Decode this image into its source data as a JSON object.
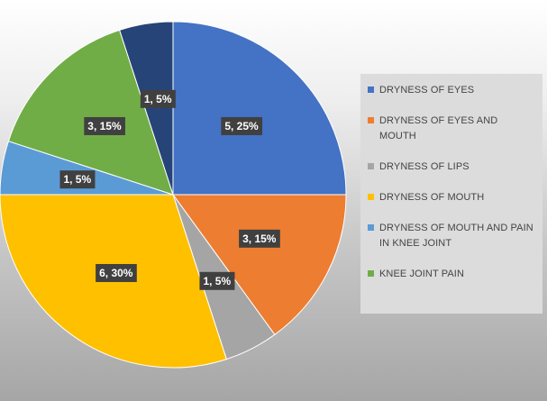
{
  "chart_data": {
    "type": "pie",
    "title": "",
    "series": [
      {
        "values": [
          5,
          3,
          1,
          6,
          1,
          3,
          1
        ],
        "percent_labels": [
          "25%",
          "15%",
          "5%",
          "30%",
          "5%",
          "15%",
          "5%"
        ],
        "data_labels": [
          "5, 25%",
          "3, 15%",
          "1, 5%",
          "6, 30%",
          "1, 5%",
          "3, 15%",
          "1, 5%"
        ]
      }
    ],
    "categories": [
      "DRYNESS OF EYES",
      "DRYNESS OF EYES AND MOUTH",
      "DRYNESS OF LIPS",
      "DRYNESS OF MOUTH",
      "DRYNESS OF MOUTH AND PAIN IN KNEE JOINT",
      "KNEE JOINT PAIN",
      ""
    ],
    "colors": [
      "#4472c4",
      "#ed7d31",
      "#a5a5a5",
      "#ffc000",
      "#5b9bd5",
      "#70ad47",
      "#264478"
    ],
    "legend_position": "right",
    "start": "12 o'clock, clockwise"
  },
  "legend": {
    "items": [
      {
        "label": "DRYNESS OF EYES",
        "color": "#4472c4"
      },
      {
        "label": "DRYNESS OF EYES AND MOUTH",
        "color": "#ed7d31"
      },
      {
        "label": "DRYNESS OF LIPS",
        "color": "#a5a5a5"
      },
      {
        "label": "DRYNESS OF MOUTH",
        "color": "#ffc000"
      },
      {
        "label": "DRYNESS OF MOUTH AND PAIN IN KNEE JOINT",
        "color": "#5b9bd5"
      },
      {
        "label": "KNEE JOINT PAIN",
        "color": "#70ad47"
      }
    ]
  }
}
